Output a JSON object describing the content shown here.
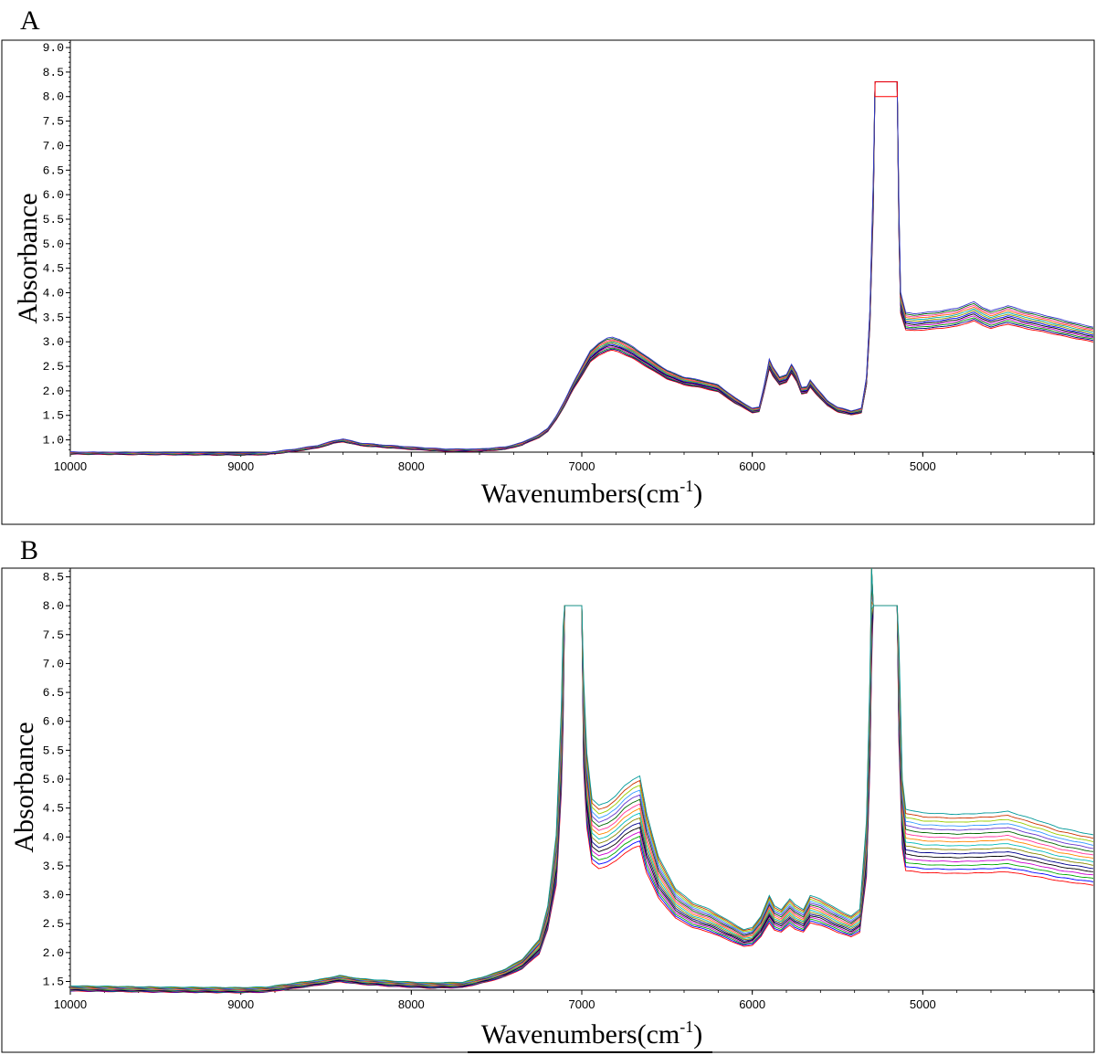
{
  "chart_data": [
    {
      "type": "line",
      "panel_label": "A",
      "xlabel": "Wavenumbers(cm",
      "xlabel_sup": "-1",
      "xlabel_close": ")",
      "ylabel": "Absorbance",
      "xlim": [
        10000,
        4000
      ],
      "ylim": [
        0.75,
        9.15
      ],
      "xticks": [
        10000,
        9000,
        8000,
        7000,
        6000,
        5000
      ],
      "yticks": [
        "1.0",
        "1.5",
        "2.0",
        "2.5",
        "3.0",
        "3.5",
        "4.0",
        "4.5",
        "5.0",
        "5.5",
        "6.0",
        "6.5",
        "7.0",
        "7.5",
        "8.0",
        "8.5",
        "9.0"
      ],
      "grid": false,
      "spread": {
        "low": 0.025,
        "high": 0.06
      },
      "series_colors": [
        "#ff0000",
        "#00008b",
        "#009900",
        "#cc00cc",
        "#000000",
        "#0000ff",
        "#999900",
        "#00aaaa",
        "#ff6600",
        "#ff3399",
        "#006600",
        "#3333cc"
      ],
      "saturation_cap": [
        {
          "x1": 5280,
          "x2": 5150,
          "y_top": 8.3,
          "y_bottom": 8.0,
          "color": "#ff0000"
        }
      ],
      "baseline": [
        [
          10000,
          0.73
        ],
        [
          9500,
          0.72
        ],
        [
          9000,
          0.71
        ],
        [
          8850,
          0.72
        ],
        [
          8700,
          0.78
        ],
        [
          8550,
          0.86
        ],
        [
          8450,
          0.96
        ],
        [
          8400,
          0.99
        ],
        [
          8350,
          0.95
        ],
        [
          8300,
          0.91
        ],
        [
          8200,
          0.88
        ],
        [
          8000,
          0.83
        ],
        [
          7800,
          0.79
        ],
        [
          7600,
          0.79
        ],
        [
          7450,
          0.83
        ],
        [
          7350,
          0.92
        ],
        [
          7250,
          1.08
        ],
        [
          7200,
          1.2
        ],
        [
          7150,
          1.45
        ],
        [
          7100,
          1.75
        ],
        [
          7050,
          2.1
        ],
        [
          7000,
          2.4
        ],
        [
          6950,
          2.7
        ],
        [
          6900,
          2.85
        ],
        [
          6850,
          2.94
        ],
        [
          6820,
          2.96
        ],
        [
          6780,
          2.92
        ],
        [
          6700,
          2.78
        ],
        [
          6600,
          2.55
        ],
        [
          6500,
          2.33
        ],
        [
          6400,
          2.2
        ],
        [
          6300,
          2.14
        ],
        [
          6200,
          2.05
        ],
        [
          6100,
          1.8
        ],
        [
          6000,
          1.6
        ],
        [
          5960,
          1.62
        ],
        [
          5930,
          2.05
        ],
        [
          5900,
          2.55
        ],
        [
          5880,
          2.4
        ],
        [
          5840,
          2.2
        ],
        [
          5800,
          2.25
        ],
        [
          5770,
          2.45
        ],
        [
          5740,
          2.28
        ],
        [
          5710,
          2.0
        ],
        [
          5680,
          2.02
        ],
        [
          5660,
          2.15
        ],
        [
          5620,
          1.98
        ],
        [
          5560,
          1.75
        ],
        [
          5500,
          1.62
        ],
        [
          5420,
          1.55
        ],
        [
          5360,
          1.6
        ],
        [
          5330,
          2.2
        ],
        [
          5310,
          3.5
        ],
        [
          5290,
          6.0
        ],
        [
          5280,
          8.3
        ],
        [
          5150,
          8.3
        ],
        [
          5140,
          5.5
        ],
        [
          5130,
          3.8
        ],
        [
          5100,
          3.42
        ],
        [
          5050,
          3.4
        ],
        [
          4900,
          3.45
        ],
        [
          4800,
          3.5
        ],
        [
          4700,
          3.62
        ],
        [
          4650,
          3.52
        ],
        [
          4600,
          3.45
        ],
        [
          4500,
          3.55
        ],
        [
          4400,
          3.45
        ],
        [
          4300,
          3.38
        ],
        [
          4200,
          3.3
        ],
        [
          4100,
          3.22
        ],
        [
          4000,
          3.15
        ]
      ]
    },
    {
      "type": "line",
      "panel_label": "B",
      "xlabel": "Wavenumbers(cm",
      "xlabel_sup": "-1",
      "xlabel_close": ")",
      "ylabel": "Absorbance",
      "xlim": [
        10000,
        4000
      ],
      "ylim": [
        1.35,
        8.65
      ],
      "xticks": [
        10000,
        9000,
        8000,
        7000,
        6000,
        5000
      ],
      "yticks": [
        "1.5",
        "2.0",
        "2.5",
        "3.0",
        "3.5",
        "4.0",
        "4.5",
        "5.0",
        "5.5",
        "6.0",
        "6.5",
        "7.0",
        "7.5",
        "8.0",
        "8.5"
      ],
      "grid": false,
      "spread": {
        "low": 0.03,
        "high": 0.14
      },
      "series_colors": [
        "#ff0000",
        "#0000ff",
        "#00aa00",
        "#cc00cc",
        "#000000",
        "#00008b",
        "#888800",
        "#00bbbb",
        "#ff8800",
        "#ff3399",
        "#006600",
        "#6633cc",
        "#3399ff",
        "#99cc00",
        "#cc3300",
        "#009999"
      ],
      "saturation_cap": [],
      "baseline": [
        [
          10000,
          1.38
        ],
        [
          9500,
          1.36
        ],
        [
          9000,
          1.35
        ],
        [
          8850,
          1.36
        ],
        [
          8700,
          1.42
        ],
        [
          8550,
          1.48
        ],
        [
          8420,
          1.55
        ],
        [
          8300,
          1.5
        ],
        [
          8100,
          1.46
        ],
        [
          7900,
          1.43
        ],
        [
          7700,
          1.44
        ],
        [
          7550,
          1.55
        ],
        [
          7450,
          1.65
        ],
        [
          7350,
          1.8
        ],
        [
          7250,
          2.1
        ],
        [
          7200,
          2.6
        ],
        [
          7150,
          3.6
        ],
        [
          7120,
          5.5
        ],
        [
          7100,
          8.0
        ],
        [
          7000,
          8.0
        ],
        [
          6990,
          6.0
        ],
        [
          6970,
          4.8
        ],
        [
          6940,
          4.1
        ],
        [
          6900,
          4.0
        ],
        [
          6850,
          4.05
        ],
        [
          6800,
          4.15
        ],
        [
          6750,
          4.3
        ],
        [
          6700,
          4.4
        ],
        [
          6660,
          4.45
        ],
        [
          6620,
          3.9
        ],
        [
          6550,
          3.3
        ],
        [
          6450,
          2.85
        ],
        [
          6350,
          2.65
        ],
        [
          6250,
          2.55
        ],
        [
          6150,
          2.4
        ],
        [
          6050,
          2.25
        ],
        [
          6000,
          2.28
        ],
        [
          5950,
          2.45
        ],
        [
          5900,
          2.75
        ],
        [
          5870,
          2.6
        ],
        [
          5830,
          2.55
        ],
        [
          5780,
          2.7
        ],
        [
          5750,
          2.62
        ],
        [
          5700,
          2.55
        ],
        [
          5660,
          2.75
        ],
        [
          5600,
          2.7
        ],
        [
          5500,
          2.55
        ],
        [
          5420,
          2.45
        ],
        [
          5370,
          2.55
        ],
        [
          5330,
          3.8
        ],
        [
          5310,
          6.0
        ],
        [
          5300,
          8.0
        ],
        [
          5150,
          8.0
        ],
        [
          5140,
          6.5
        ],
        [
          5120,
          4.4
        ],
        [
          5100,
          3.95
        ],
        [
          5000,
          3.9
        ],
        [
          4800,
          3.88
        ],
        [
          4600,
          3.9
        ],
        [
          4500,
          3.92
        ],
        [
          4400,
          3.85
        ],
        [
          4300,
          3.78
        ],
        [
          4200,
          3.7
        ],
        [
          4100,
          3.65
        ],
        [
          4000,
          3.6
        ]
      ]
    }
  ]
}
